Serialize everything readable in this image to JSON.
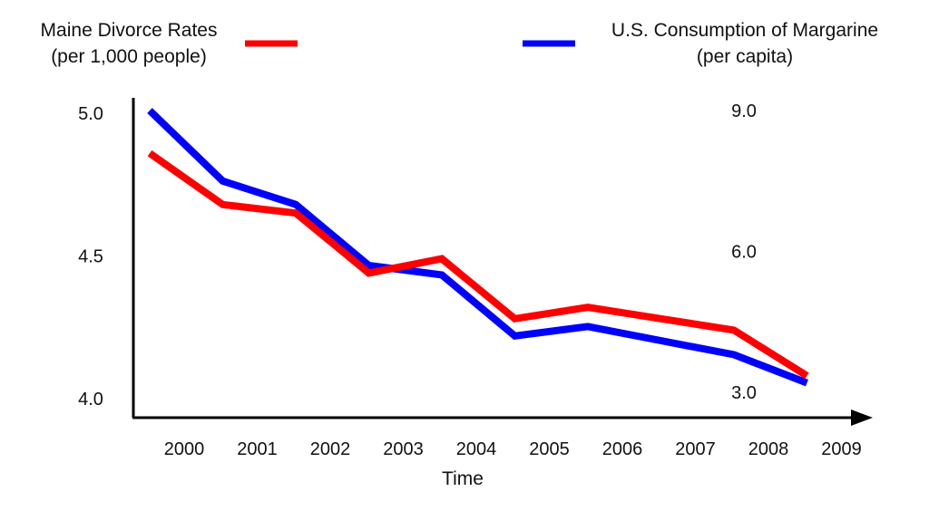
{
  "chart_data": {
    "type": "line",
    "title": "",
    "xlabel": "Time",
    "categories": [
      "2000",
      "2001",
      "2002",
      "2003",
      "2004",
      "2005",
      "2006",
      "2007",
      "2008",
      "2009"
    ],
    "legend": {
      "left": {
        "line1": "Maine Divorce Rates",
        "line2": "(per 1,000 people)"
      },
      "right": {
        "line1": "U.S. Consumption of Margarine",
        "line2": "(per capita)"
      }
    },
    "left_axis": {
      "ticks": [
        "5.0",
        "4.5",
        "4.0"
      ],
      "tick_values": [
        5.0,
        4.5,
        4.0
      ],
      "ylim": [
        4.0,
        5.0
      ]
    },
    "right_axis": {
      "ticks": [
        "9.0",
        "6.0",
        "3.0"
      ],
      "tick_values": [
        9.0,
        6.0,
        3.0
      ],
      "ylim": [
        3.0,
        9.0
      ]
    },
    "series": [
      {
        "name": "Maine Divorce Rates (per 1,000 people)",
        "axis": "left",
        "color": "#ff0000",
        "values": [
          4.86,
          4.68,
          4.65,
          4.44,
          4.49,
          4.28,
          4.32,
          4.28,
          4.24,
          4.08
        ]
      },
      {
        "name": "U.S. Consumption of Margarine (per capita)",
        "axis": "right",
        "color": "#0000ff",
        "values": [
          9.0,
          7.5,
          7.0,
          5.7,
          5.5,
          4.2,
          4.4,
          4.1,
          3.8,
          3.2
        ]
      }
    ],
    "grid": false,
    "legend_position": "top"
  }
}
